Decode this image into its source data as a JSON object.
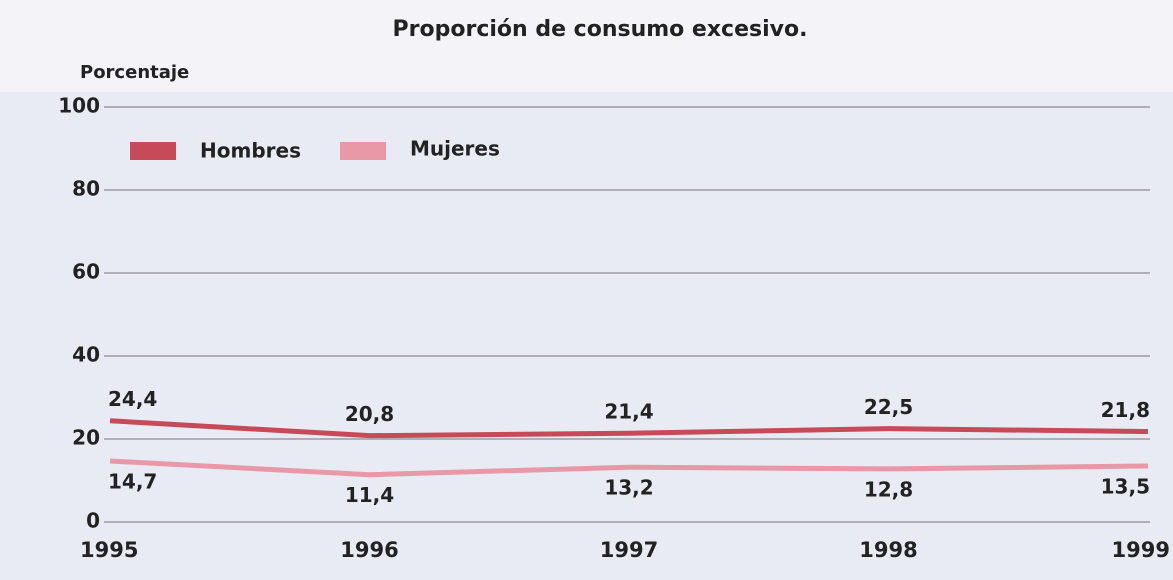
{
  "chart_data": {
    "type": "line",
    "title": "Proporción de consumo excesivo.",
    "y_label": "Porcentaje",
    "categories": [
      "1995",
      "1996",
      "1997",
      "1998",
      "1999"
    ],
    "series": [
      {
        "name": "Hombres",
        "color": "#c64a57",
        "values": [
          24.4,
          20.8,
          21.4,
          22.5,
          21.8
        ],
        "value_labels": [
          "24,4",
          "20,8",
          "21,4",
          "22,5",
          "21,8"
        ]
      },
      {
        "name": "Mujeres",
        "color": "#e898a6",
        "values": [
          14.7,
          11.4,
          13.2,
          12.8,
          13.5
        ],
        "value_labels": [
          "14,7",
          "11,4",
          "13,2",
          "12,8",
          "13,5"
        ]
      }
    ],
    "ylim": [
      0,
      100
    ],
    "yticks": [
      0,
      20,
      40,
      60,
      80,
      100
    ],
    "grid": true,
    "legend": "top-left"
  }
}
